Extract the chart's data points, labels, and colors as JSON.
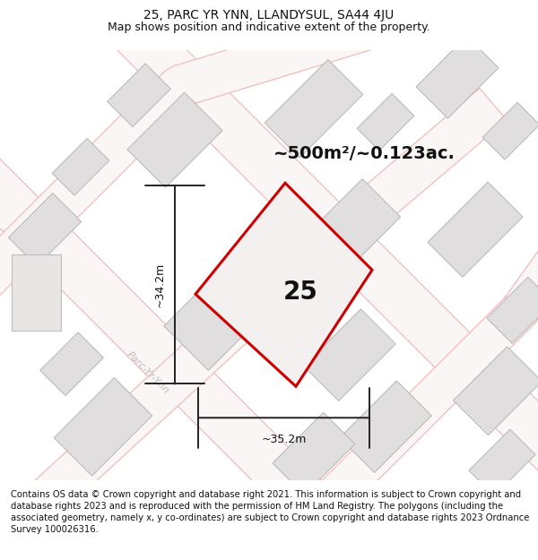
{
  "title": "25, PARC YR YNN, LLANDYSUL, SA44 4JU",
  "subtitle": "Map shows position and indicative extent of the property.",
  "area_label": "~500m²/~0.123ac.",
  "plot_number": "25",
  "dim_width": "~35.2m",
  "dim_height": "~34.2m",
  "road_label": "Parc-Yr-Ynn",
  "footer": "Contains OS data © Crown copyright and database right 2021. This information is subject to Crown copyright and database rights 2023 and is reproduced with the permission of HM Land Registry. The polygons (including the associated geometry, namely x, y co-ordinates) are subject to Crown copyright and database rights 2023 Ordnance Survey 100026316.",
  "map_bg": "#f9f7f7",
  "plot_color": "#cc0000",
  "plot_fill": "#f5f0f0",
  "building_face": "#e0dede",
  "building_edge": "#b8b5b5",
  "road_fill": "#f9f5f5",
  "road_outline": "#f0c0c0",
  "title_fontsize": 10,
  "subtitle_fontsize": 9,
  "area_fontsize": 14,
  "plot_num_fontsize": 20,
  "dim_fontsize": 9,
  "road_label_fontsize": 8,
  "footer_fontsize": 7.2
}
